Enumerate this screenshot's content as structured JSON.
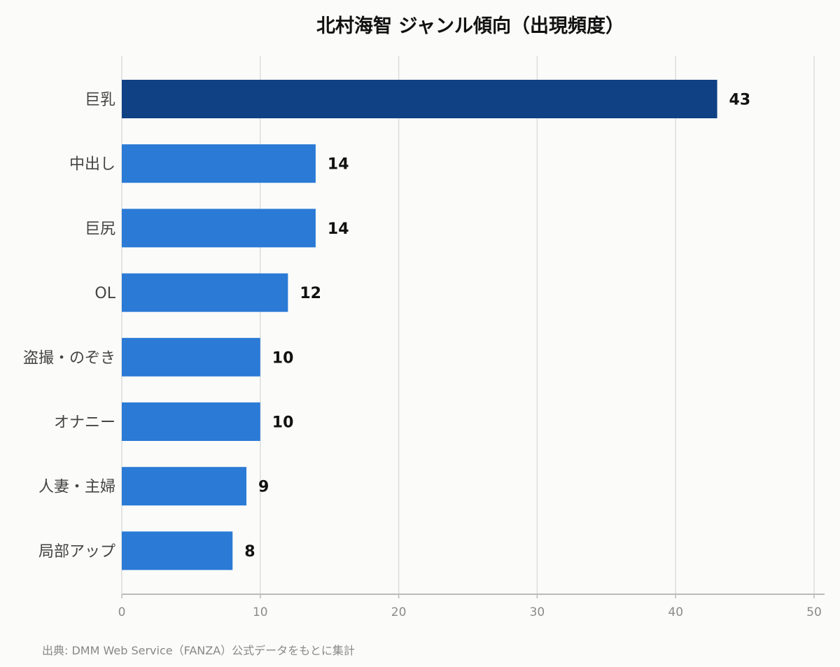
{
  "source": "出典: DMM Web Service（FANZA）公式データをもとに集計",
  "colors": {
    "highlight_bar": "#0f4184",
    "bar": "#2a7ad6",
    "grid": "#dddddd",
    "axis": "#bbbbbb",
    "background": "#fbfbf9"
  },
  "chart_data": {
    "type": "bar",
    "orientation": "horizontal",
    "title": "北村海智 ジャンル傾向（出現頻度）",
    "categories": [
      "巨乳",
      "中出し",
      "巨尻",
      "OL",
      "盗撮・のぞき",
      "オナニー",
      "人妻・主婦",
      "局部アップ"
    ],
    "values": [
      43,
      14,
      14,
      12,
      10,
      10,
      9,
      8
    ],
    "highlight_index": 0,
    "xlim": [
      0,
      50
    ],
    "xticks": [
      0,
      10,
      20,
      30,
      40,
      50
    ],
    "xlabel": "",
    "ylabel": "",
    "grid": "vertical"
  }
}
